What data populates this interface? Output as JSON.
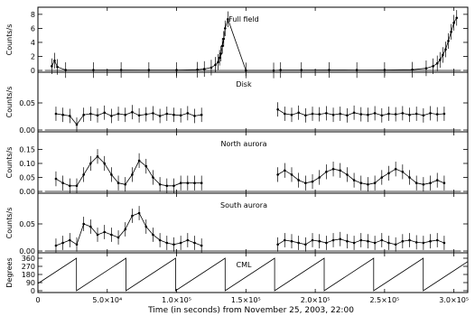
{
  "chart_data": [
    {
      "type": "scatter",
      "panel": "Full field",
      "label": "Full field",
      "ylabel": "Counts/s",
      "ylim": [
        0,
        8.5
      ],
      "yticks": [
        0,
        2,
        4,
        6,
        8
      ],
      "xlim": [
        0,
        310000
      ],
      "x": [
        10000,
        12000,
        14000,
        20000,
        40000,
        60000,
        80000,
        100000,
        115000,
        120000,
        125000,
        128000,
        130000,
        131000,
        132000,
        133000,
        134000,
        135000,
        137000,
        150000,
        170000,
        175000,
        190000,
        210000,
        230000,
        250000,
        270000,
        280000,
        285000,
        288000,
        290000,
        292000,
        294000,
        296000,
        298000,
        300000,
        302000
      ],
      "y": [
        0.6,
        1.4,
        0.5,
        0.05,
        0.05,
        0.06,
        0.05,
        0.05,
        0.1,
        0.2,
        0.4,
        0.8,
        1.2,
        1.8,
        2.4,
        3.5,
        4.5,
        6.0,
        7.3,
        0.0,
        0.0,
        0.05,
        0.05,
        0.06,
        0.05,
        0.06,
        0.1,
        0.3,
        0.6,
        1.0,
        1.5,
        2.2,
        3.0,
        4.2,
        5.5,
        6.8,
        7.5
      ]
    },
    {
      "type": "scatter",
      "panel": "Disk",
      "label": "Disk",
      "ylabel": "Counts/s",
      "ylim": [
        0,
        0.1
      ],
      "yticks": [
        0.0,
        0.05
      ],
      "yticklabels": [
        "0.00",
        "0.05"
      ],
      "xlim": [
        0,
        310000
      ],
      "x": [
        13000,
        18000,
        23000,
        28000,
        33000,
        38000,
        43000,
        48000,
        53000,
        58000,
        63000,
        68000,
        73000,
        78000,
        83000,
        88000,
        93000,
        98000,
        103000,
        108000,
        113000,
        118000,
        173000,
        178000,
        183000,
        188000,
        193000,
        198000,
        203000,
        208000,
        213000,
        218000,
        223000,
        228000,
        233000,
        238000,
        243000,
        248000,
        253000,
        258000,
        263000,
        268000,
        273000,
        278000,
        283000,
        288000,
        293000
      ],
      "y": [
        0.03,
        0.028,
        0.026,
        0.01,
        0.028,
        0.03,
        0.027,
        0.032,
        0.026,
        0.03,
        0.028,
        0.033,
        0.027,
        0.029,
        0.031,
        0.026,
        0.03,
        0.028,
        0.027,
        0.031,
        0.026,
        0.028,
        0.038,
        0.03,
        0.028,
        0.032,
        0.027,
        0.03,
        0.029,
        0.031,
        0.028,
        0.03,
        0.027,
        0.032,
        0.029,
        0.028,
        0.031,
        0.027,
        0.03,
        0.029,
        0.031,
        0.028,
        0.03,
        0.027,
        0.031,
        0.029,
        0.03
      ]
    },
    {
      "type": "scatter",
      "panel": "North aurora",
      "label": "North aurora",
      "ylabel": "Counts/s",
      "ylim": [
        0,
        0.2
      ],
      "yticks": [
        0.0,
        0.05,
        0.1,
        0.15
      ],
      "yticklabels": [
        "0.00",
        "0.05",
        "0.10",
        "0.15"
      ],
      "xlim": [
        0,
        310000
      ],
      "x": [
        13000,
        18000,
        23000,
        28000,
        33000,
        38000,
        43000,
        48000,
        53000,
        58000,
        63000,
        68000,
        73000,
        78000,
        83000,
        88000,
        93000,
        98000,
        103000,
        108000,
        113000,
        118000,
        173000,
        178000,
        183000,
        188000,
        193000,
        198000,
        203000,
        208000,
        213000,
        218000,
        223000,
        228000,
        233000,
        238000,
        243000,
        248000,
        253000,
        258000,
        263000,
        268000,
        273000,
        278000,
        283000,
        288000,
        293000
      ],
      "y": [
        0.045,
        0.03,
        0.02,
        0.02,
        0.06,
        0.1,
        0.125,
        0.1,
        0.06,
        0.03,
        0.025,
        0.06,
        0.11,
        0.09,
        0.05,
        0.025,
        0.02,
        0.02,
        0.03,
        0.03,
        0.03,
        0.03,
        0.06,
        0.075,
        0.06,
        0.04,
        0.03,
        0.035,
        0.05,
        0.07,
        0.08,
        0.075,
        0.06,
        0.04,
        0.03,
        0.025,
        0.03,
        0.05,
        0.065,
        0.08,
        0.07,
        0.05,
        0.03,
        0.025,
        0.03,
        0.04,
        0.03
      ]
    },
    {
      "type": "scatter",
      "panel": "South aurora",
      "label": "South aurora",
      "ylabel": "Counts/s",
      "ylim": [
        0,
        0.1
      ],
      "yticks": [
        0.0,
        0.05
      ],
      "yticklabels": [
        "0.00",
        "0.05"
      ],
      "xlim": [
        0,
        310000
      ],
      "x": [
        13000,
        18000,
        23000,
        28000,
        33000,
        38000,
        43000,
        48000,
        53000,
        58000,
        63000,
        68000,
        73000,
        78000,
        83000,
        88000,
        93000,
        98000,
        103000,
        108000,
        113000,
        118000,
        173000,
        178000,
        183000,
        188000,
        193000,
        198000,
        203000,
        208000,
        213000,
        218000,
        223000,
        228000,
        233000,
        238000,
        243000,
        248000,
        253000,
        258000,
        263000,
        268000,
        273000,
        278000,
        283000,
        288000,
        293000
      ],
      "y": [
        0.01,
        0.015,
        0.02,
        0.012,
        0.05,
        0.045,
        0.03,
        0.035,
        0.03,
        0.025,
        0.04,
        0.065,
        0.07,
        0.045,
        0.03,
        0.02,
        0.015,
        0.012,
        0.015,
        0.02,
        0.015,
        0.01,
        0.012,
        0.02,
        0.018,
        0.015,
        0.012,
        0.02,
        0.018,
        0.015,
        0.02,
        0.022,
        0.018,
        0.015,
        0.02,
        0.018,
        0.015,
        0.02,
        0.015,
        0.012,
        0.018,
        0.02,
        0.016,
        0.015,
        0.018,
        0.02,
        0.015
      ]
    },
    {
      "type": "line",
      "panel": "CML",
      "label": "CML",
      "ylabel": "Degrees",
      "ylim": [
        0,
        380
      ],
      "yticks": [
        0,
        90,
        180,
        270,
        360
      ],
      "xlim": [
        0,
        310000
      ],
      "xlabel": "Time (in seconds) from November 25, 2003, 22:00",
      "xticks": [
        0,
        50000,
        100000,
        150000,
        200000,
        250000,
        300000
      ],
      "xticklabels": [
        "0",
        "5.0×10⁴",
        "1.0×10⁵",
        "1.5×10⁵",
        "2.0×10⁵",
        "2.5×10⁵",
        "3.0×10⁵"
      ],
      "period": 35730,
      "phase_offset": 80,
      "x_end": 310000
    }
  ]
}
